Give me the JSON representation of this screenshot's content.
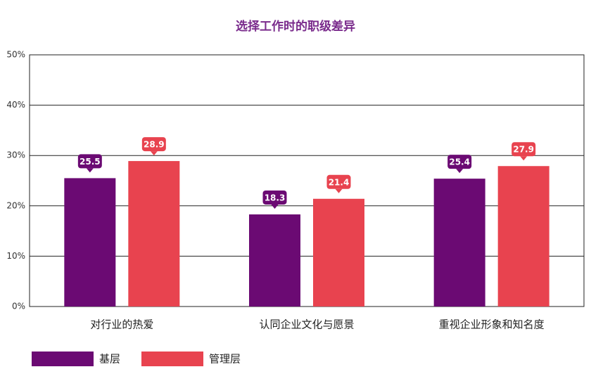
{
  "chart_data": {
    "type": "bar",
    "title": "选择工作时的职级差异",
    "categories": [
      "对行业的热爱",
      "认同企业文化与愿景",
      "重视企业形象和知名度"
    ],
    "series": [
      {
        "name": "基层",
        "color": "#6b0a73",
        "values": [
          25.5,
          18.3,
          25.4
        ]
      },
      {
        "name": "管理层",
        "color": "#e8434f",
        "values": [
          28.9,
          21.4,
          27.9
        ]
      }
    ],
    "ylim": [
      0,
      50
    ],
    "yticks": [
      {
        "value": 0,
        "label": "0%"
      },
      {
        "value": 10,
        "label": "10%"
      },
      {
        "value": 20,
        "label": "20%"
      },
      {
        "value": 30,
        "label": "30%"
      },
      {
        "value": 40,
        "label": "40%"
      },
      {
        "value": 50,
        "label": "50%"
      }
    ],
    "grid": true,
    "legend": "bottom-left"
  }
}
